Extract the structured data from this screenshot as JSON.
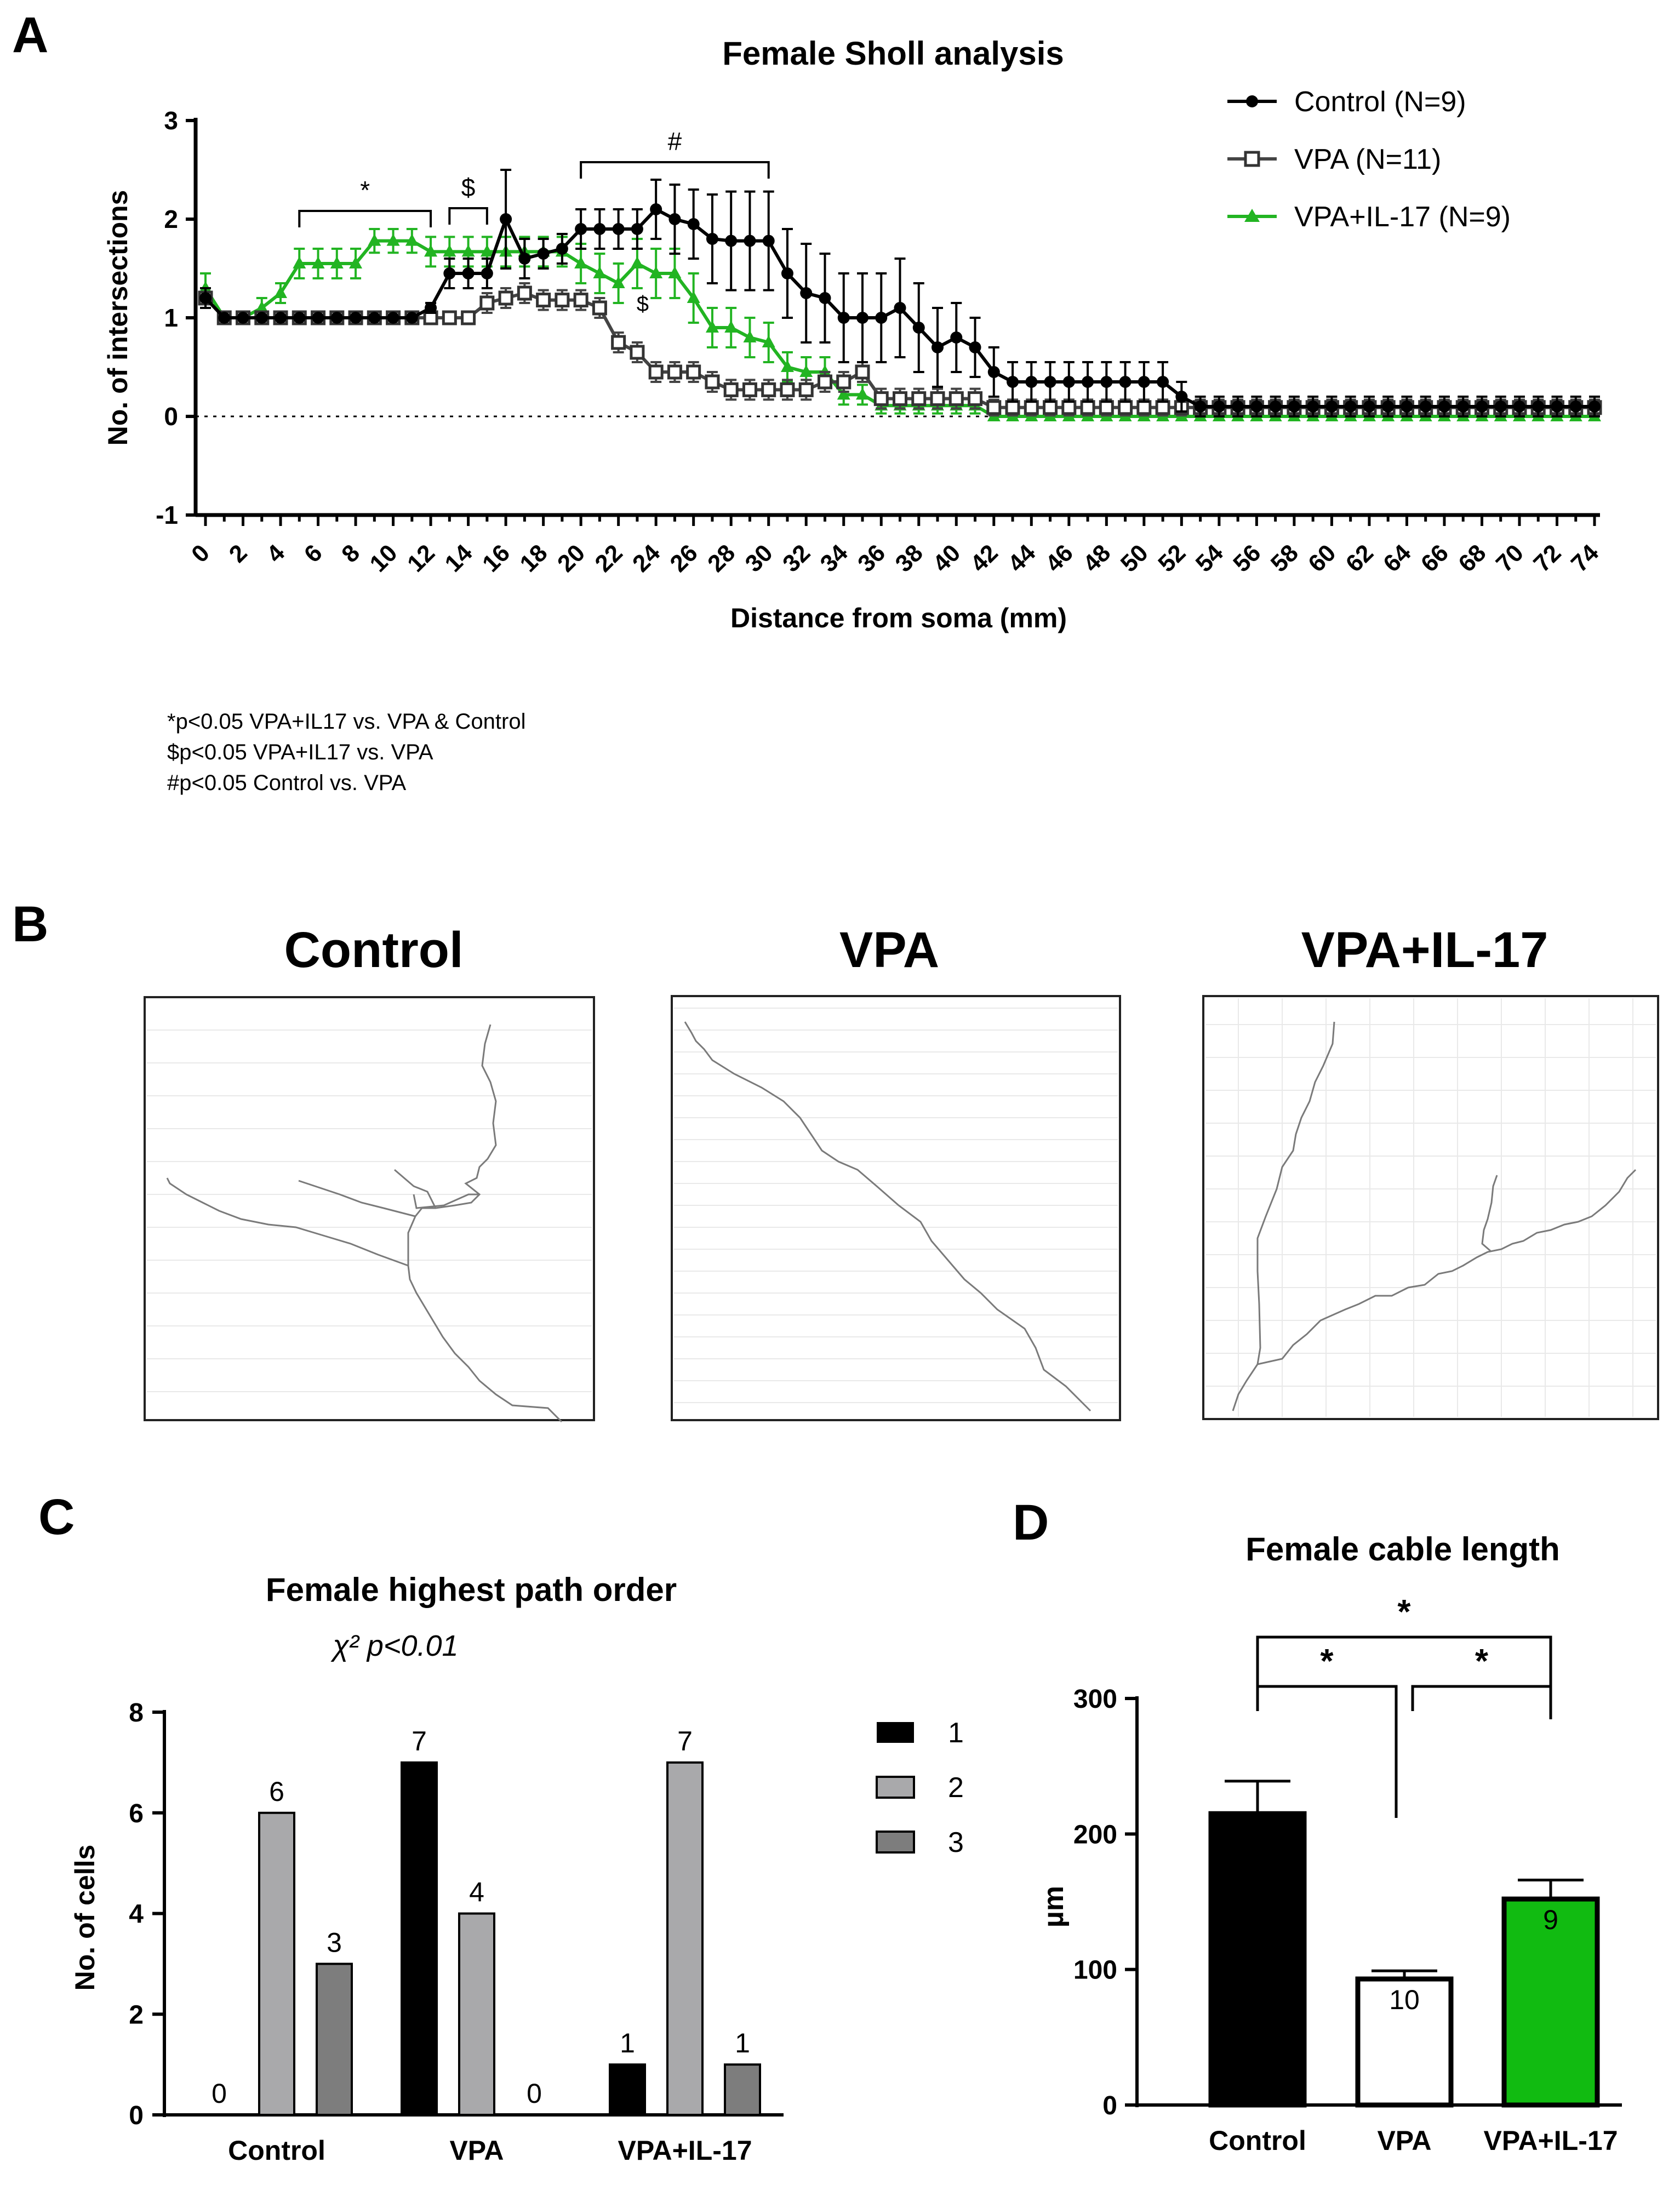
{
  "panels": {
    "A": {
      "letter": "A",
      "chart_data": {
        "type": "line",
        "title": "Female Sholl analysis",
        "xlabel": "Distance from soma (mm)",
        "ylabel": "No. of intersections",
        "xlim": [
          0,
          74
        ],
        "ylim": [
          -1,
          3
        ],
        "yticks": [
          -1,
          0,
          1,
          2,
          3
        ],
        "xticks": [
          0,
          2,
          4,
          6,
          8,
          10,
          12,
          14,
          16,
          18,
          20,
          22,
          24,
          26,
          28,
          30,
          32,
          34,
          36,
          38,
          40,
          42,
          44,
          46,
          48,
          50,
          52,
          54,
          56,
          58,
          60,
          62,
          64,
          66,
          68,
          70,
          72,
          74
        ],
        "legend_position": "top-right",
        "grid": false,
        "x": [
          0,
          1,
          2,
          3,
          4,
          5,
          6,
          7,
          8,
          9,
          10,
          11,
          12,
          13,
          14,
          15,
          16,
          17,
          18,
          19,
          20,
          21,
          22,
          23,
          24,
          25,
          26,
          27,
          28,
          29,
          30,
          31,
          32,
          33,
          34,
          35,
          36,
          37,
          38,
          39,
          40,
          41,
          42,
          43,
          44,
          45,
          46,
          47,
          48,
          49,
          50,
          51,
          52,
          53,
          54,
          55,
          56,
          57,
          58,
          59,
          60,
          61,
          62,
          63,
          64,
          65,
          66,
          67,
          68,
          69,
          70,
          71,
          72,
          73,
          74
        ],
        "series": [
          {
            "name": "Control (N=9)",
            "color": "#000000",
            "marker": "circle",
            "values": [
              1.2,
              1,
              1,
              1,
              1,
              1,
              1,
              1,
              1,
              1,
              1,
              1,
              1.1,
              1.45,
              1.45,
              1.45,
              2,
              1.6,
              1.65,
              1.7,
              1.9,
              1.9,
              1.9,
              1.9,
              2.1,
              2,
              1.95,
              1.8,
              1.78,
              1.78,
              1.78,
              1.45,
              1.25,
              1.2,
              1,
              1,
              1,
              1.1,
              0.9,
              0.7,
              0.8,
              0.7,
              0.45,
              0.35,
              0.35,
              0.35,
              0.35,
              0.35,
              0.35,
              0.35,
              0.35,
              0.35,
              0.2,
              0.1,
              0.1,
              0.1,
              0.1,
              0.1,
              0.1,
              0.1,
              0.1,
              0.1,
              0.1,
              0.1,
              0.1,
              0.1,
              0.1,
              0.1,
              0.1,
              0.1,
              0.1,
              0.1,
              0.1,
              0.1,
              0.1
            ],
            "errors": [
              0.1,
              0,
              0,
              0,
              0,
              0,
              0,
              0,
              0,
              0,
              0,
              0,
              0.05,
              0.15,
              0.15,
              0.15,
              0.5,
              0.2,
              0.15,
              0.15,
              0.2,
              0.2,
              0.2,
              0.2,
              0.3,
              0.35,
              0.35,
              0.45,
              0.5,
              0.5,
              0.5,
              0.45,
              0.5,
              0.45,
              0.45,
              0.45,
              0.45,
              0.5,
              0.45,
              0.4,
              0.35,
              0.3,
              0.25,
              0.2,
              0.2,
              0.2,
              0.2,
              0.2,
              0.2,
              0.2,
              0.2,
              0.2,
              0.15,
              0.1,
              0.1,
              0.1,
              0.1,
              0.1,
              0.1,
              0.1,
              0.1,
              0.1,
              0.1,
              0.1,
              0.1,
              0.1,
              0.1,
              0.1,
              0.1,
              0.1,
              0.1,
              0.1,
              0.1,
              0.1,
              0.1
            ]
          },
          {
            "name": "VPA (N=11)",
            "color": "#444444",
            "marker": "square-open",
            "values": [
              1.2,
              1,
              1,
              1,
              1,
              1,
              1,
              1,
              1,
              1,
              1,
              1,
              1,
              1,
              1,
              1.15,
              1.2,
              1.25,
              1.18,
              1.18,
              1.18,
              1.1,
              0.75,
              0.65,
              0.45,
              0.45,
              0.45,
              0.35,
              0.27,
              0.27,
              0.27,
              0.27,
              0.27,
              0.35,
              0.35,
              0.45,
              0.18,
              0.18,
              0.18,
              0.18,
              0.18,
              0.18,
              0.09,
              0.09,
              0.09,
              0.09,
              0.09,
              0.09,
              0.09,
              0.09,
              0.09,
              0.09,
              0.09,
              0.09,
              0.09,
              0.09,
              0.09,
              0.09,
              0.09,
              0.09,
              0.09,
              0.09,
              0.09,
              0.09,
              0.09,
              0.09,
              0.09,
              0.09,
              0.09,
              0.09,
              0.09,
              0.09,
              0.09,
              0.09,
              0.09
            ],
            "errors": [
              0.1,
              0,
              0,
              0,
              0,
              0,
              0,
              0,
              0,
              0,
              0,
              0,
              0,
              0,
              0,
              0.1,
              0.1,
              0.1,
              0.1,
              0.1,
              0.1,
              0.1,
              0.1,
              0.1,
              0.1,
              0.1,
              0.1,
              0.1,
              0.1,
              0.1,
              0.1,
              0.1,
              0.1,
              0.1,
              0.1,
              0.1,
              0.1,
              0.1,
              0.1,
              0.1,
              0.1,
              0.1,
              0.08,
              0.08,
              0.08,
              0.08,
              0.08,
              0.08,
              0.08,
              0.08,
              0.08,
              0.08,
              0.08,
              0.08,
              0.08,
              0.08,
              0.08,
              0.08,
              0.08,
              0.08,
              0.08,
              0.08,
              0.08,
              0.08,
              0.08,
              0.08,
              0.08,
              0.08,
              0.08,
              0.08,
              0.08,
              0.08,
              0.08,
              0.08,
              0.08
            ]
          },
          {
            "name": "VPA+IL-17 (N=9)",
            "color": "#22b422",
            "marker": "triangle",
            "values": [
              1.3,
              1,
              1,
              1.1,
              1.25,
              1.55,
              1.55,
              1.55,
              1.55,
              1.78,
              1.78,
              1.78,
              1.67,
              1.67,
              1.67,
              1.67,
              1.67,
              1.67,
              1.67,
              1.67,
              1.55,
              1.45,
              1.35,
              1.55,
              1.45,
              1.45,
              1.2,
              0.9,
              0.9,
              0.8,
              0.75,
              0.5,
              0.45,
              0.45,
              0.22,
              0.22,
              0.11,
              0.11,
              0.11,
              0.11,
              0.11,
              0.11,
              0,
              0,
              0,
              0,
              0,
              0,
              0,
              0,
              0,
              0,
              0,
              0,
              0,
              0,
              0,
              0,
              0,
              0,
              0,
              0,
              0,
              0,
              0,
              0,
              0,
              0,
              0,
              0,
              0,
              0,
              0,
              0,
              0
            ],
            "errors": [
              0.15,
              0,
              0,
              0.1,
              0.1,
              0.15,
              0.15,
              0.15,
              0.15,
              0.12,
              0.12,
              0.12,
              0.15,
              0.15,
              0.15,
              0.15,
              0.15,
              0.15,
              0.15,
              0.15,
              0.2,
              0.2,
              0.2,
              0.25,
              0.25,
              0.25,
              0.25,
              0.2,
              0.2,
              0.2,
              0.2,
              0.15,
              0.15,
              0.15,
              0.1,
              0.1,
              0.08,
              0.08,
              0.08,
              0.08,
              0.08,
              0.08,
              0,
              0,
              0,
              0,
              0,
              0,
              0,
              0,
              0,
              0,
              0,
              0,
              0,
              0,
              0,
              0,
              0,
              0,
              0,
              0,
              0,
              0,
              0,
              0,
              0,
              0,
              0,
              0,
              0,
              0,
              0,
              0,
              0
            ]
          }
        ],
        "annotations": [
          {
            "label": "*",
            "from": 5,
            "to": 12
          },
          {
            "label": "$",
            "from": 13,
            "to": 15
          },
          {
            "label": "#",
            "from": 20,
            "to": 30
          },
          {
            "label": "$",
            "at": 23
          }
        ]
      },
      "notes": [
        "*p<0.05 VPA+IL17 vs. VPA & Control",
        "$p<0.05 VPA+IL17 vs. VPA",
        "#p<0.05 Control vs. VPA"
      ]
    },
    "B": {
      "letter": "B",
      "titles": [
        "Control",
        "VPA",
        "VPA+IL-17"
      ]
    },
    "C": {
      "letter": "C",
      "subtitle": "χ² p<0.01",
      "chart_data": {
        "type": "bar",
        "title": "Female highest path order",
        "ylabel": "No. of cells",
        "ylim": [
          0,
          8
        ],
        "yticks": [
          0,
          2,
          4,
          6,
          8
        ],
        "categories": [
          "Control",
          "VPA",
          "VPA+IL-17"
        ],
        "series": [
          {
            "name": "1",
            "color": "#000000",
            "values": [
              0,
              7,
              1
            ]
          },
          {
            "name": "2",
            "color": "#a9a9ab",
            "values": [
              6,
              4,
              7
            ]
          },
          {
            "name": "3",
            "color": "#7d7d7d",
            "values": [
              3,
              0,
              1
            ]
          }
        ],
        "legend_position": "right"
      }
    },
    "D": {
      "letter": "D",
      "chart_data": {
        "type": "bar",
        "title": "Female cable length",
        "ylabel": "µm",
        "ylim": [
          0,
          300
        ],
        "yticks": [
          0,
          100,
          200,
          300
        ],
        "categories": [
          "Control",
          "VPA",
          "VPA+IL-17"
        ],
        "values": [
          215,
          93,
          152
        ],
        "errors": [
          24,
          6,
          14
        ],
        "n_labels": [
          "9",
          "10",
          "9"
        ],
        "colors": [
          "#000000",
          "#ffffff",
          "#11bb11"
        ],
        "significance": [
          {
            "pair": [
              "Control",
              "VPA+IL-17"
            ],
            "label": "*"
          },
          {
            "pair": [
              "Control",
              "VPA"
            ],
            "label": "*"
          },
          {
            "pair": [
              "VPA",
              "VPA+IL-17"
            ],
            "label": "*"
          }
        ]
      }
    }
  }
}
